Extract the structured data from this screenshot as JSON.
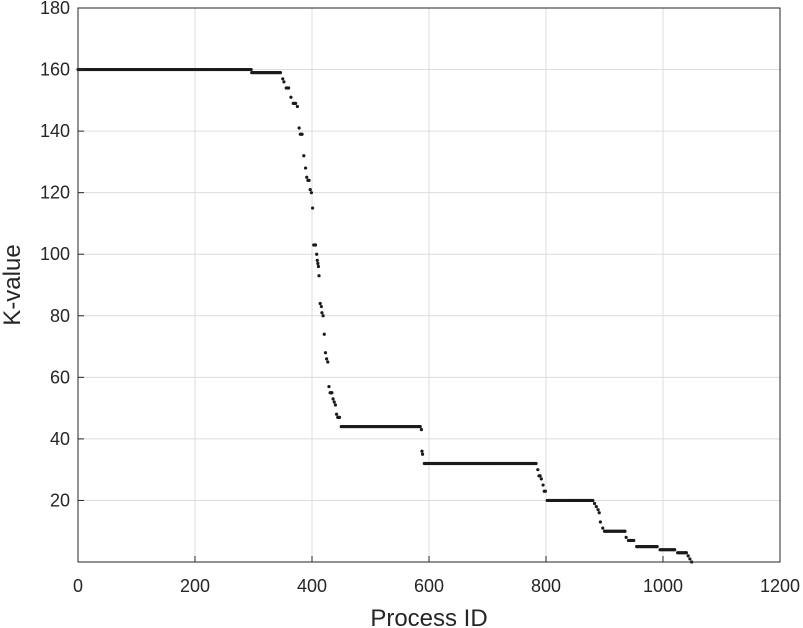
{
  "chart_data": {
    "type": "scatter",
    "title": "",
    "xlabel": "Process ID",
    "ylabel": "K-value",
    "xlim": [
      0,
      1200
    ],
    "ylim": [
      0,
      180
    ],
    "xticks": [
      0,
      200,
      400,
      600,
      800,
      1000,
      1200
    ],
    "yticks": [
      20,
      40,
      60,
      80,
      100,
      120,
      140,
      160,
      180
    ],
    "grid": true,
    "marker_color": "#1a1a1a",
    "series": [
      {
        "points": [
          [
            0,
            160
          ],
          [
            296,
            160
          ],
          [
            297,
            159
          ],
          [
            346,
            159
          ],
          [
            350,
            157
          ],
          [
            352,
            156
          ],
          [
            356,
            154
          ],
          [
            360,
            154
          ],
          [
            364,
            151
          ],
          [
            368,
            149
          ],
          [
            372,
            149
          ],
          [
            375,
            148
          ],
          [
            378,
            141
          ],
          [
            380,
            139
          ],
          [
            383,
            139
          ],
          [
            386,
            132
          ],
          [
            389,
            128
          ],
          [
            391,
            125
          ],
          [
            393,
            124
          ],
          [
            395,
            124
          ],
          [
            397,
            121
          ],
          [
            399,
            120
          ],
          [
            401,
            115
          ],
          [
            403,
            103
          ],
          [
            406,
            103
          ],
          [
            408,
            100
          ],
          [
            409,
            98
          ],
          [
            410,
            97
          ],
          [
            411,
            96
          ],
          [
            412,
            93
          ],
          [
            414,
            84
          ],
          [
            416,
            83
          ],
          [
            417,
            81
          ],
          [
            419,
            80
          ],
          [
            421,
            74
          ],
          [
            423,
            68
          ],
          [
            425,
            66
          ],
          [
            427,
            65
          ],
          [
            429,
            57
          ],
          [
            431,
            55
          ],
          [
            434,
            55
          ],
          [
            436,
            53
          ],
          [
            438,
            52
          ],
          [
            440,
            51
          ],
          [
            442,
            48
          ],
          [
            444,
            47
          ],
          [
            447,
            47
          ],
          [
            450,
            44
          ],
          [
            585,
            44
          ],
          [
            587,
            43
          ],
          [
            588,
            36
          ],
          [
            589,
            35
          ],
          [
            592,
            32
          ],
          [
            783,
            32
          ],
          [
            786,
            30
          ],
          [
            788,
            28
          ],
          [
            790,
            28
          ],
          [
            792,
            27
          ],
          [
            795,
            25
          ],
          [
            797,
            23
          ],
          [
            799,
            23
          ],
          [
            802,
            20
          ],
          [
            880,
            20
          ],
          [
            883,
            19
          ],
          [
            886,
            18
          ],
          [
            889,
            17
          ],
          [
            891,
            16
          ],
          [
            893,
            13
          ],
          [
            897,
            11
          ],
          [
            900,
            10
          ],
          [
            935,
            10
          ],
          [
            937,
            8
          ],
          [
            941,
            7
          ],
          [
            945,
            7
          ],
          [
            950,
            7
          ],
          [
            955,
            5
          ],
          [
            990,
            5
          ],
          [
            995,
            4
          ],
          [
            1020,
            4
          ],
          [
            1025,
            3
          ],
          [
            1040,
            3
          ],
          [
            1043,
            2
          ],
          [
            1046,
            1
          ],
          [
            1049,
            0
          ]
        ]
      }
    ]
  }
}
